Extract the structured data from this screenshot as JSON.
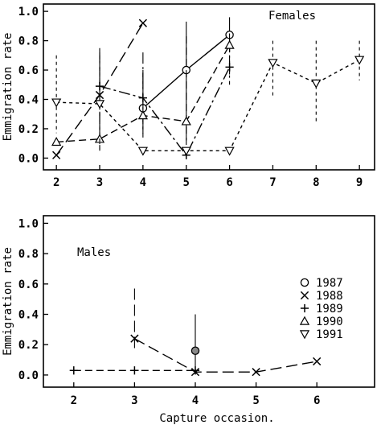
{
  "chart_data": [
    {
      "type": "line",
      "panel_label": "Females",
      "ylabel": "Emmigration rate",
      "xlabel": "",
      "xlim": [
        1.7,
        9.35
      ],
      "ylim": [
        -0.08,
        1.05
      ],
      "xticks": [
        2,
        3,
        4,
        5,
        6,
        7,
        8,
        9
      ],
      "yticks": [
        0.0,
        0.2,
        0.4,
        0.6,
        0.8,
        1.0
      ],
      "ytick_labels": [
        "0.0",
        "0.2",
        "0.4",
        "0.6",
        "0.8",
        "1.0"
      ],
      "series": [
        {
          "name": "1987",
          "marker": "circle",
          "dash": "solid",
          "points": [
            [
              4,
              0.34
            ],
            [
              5,
              0.6
            ],
            [
              6,
              0.84
            ]
          ],
          "error_bars": [
            [
              4,
              0.2,
              0.58
            ],
            [
              5,
              0.12,
              0.93
            ],
            [
              6,
              0.72,
              0.96
            ]
          ]
        },
        {
          "name": "1988",
          "marker": "x",
          "dash": "long",
          "points": [
            [
              2,
              0.02
            ],
            [
              3,
              0.43
            ],
            [
              4,
              0.92
            ]
          ],
          "error_bars": [
            [
              3,
              0.1,
              0.75
            ]
          ]
        },
        {
          "name": "1989",
          "marker": "plus",
          "dash": "dashdot",
          "points": [
            [
              3,
              0.49
            ],
            [
              4,
              0.41
            ],
            [
              5,
              0.02
            ],
            [
              6,
              0.62
            ]
          ],
          "error_bars": [
            [
              3,
              0.06,
              0.72
            ],
            [
              4,
              0.14,
              0.72
            ],
            [
              6,
              0.5,
              0.8
            ]
          ]
        },
        {
          "name": "1990",
          "marker": "triangle-up",
          "dash": "medium",
          "points": [
            [
              2,
              0.11
            ],
            [
              3,
              0.13
            ],
            [
              4,
              0.29
            ],
            [
              5,
              0.25
            ],
            [
              6,
              0.77
            ]
          ],
          "error_bars": [
            [
              3,
              0.05,
              0.7
            ],
            [
              4,
              0.14,
              0.6
            ],
            [
              5,
              0.05,
              0.83
            ],
            [
              6,
              0.55,
              0.85
            ]
          ]
        },
        {
          "name": "1991",
          "marker": "triangle-down",
          "dash": "short",
          "points": [
            [
              2,
              0.38
            ],
            [
              3,
              0.37
            ],
            [
              4,
              0.05
            ],
            [
              5,
              0.05
            ],
            [
              6,
              0.05
            ],
            [
              7,
              0.65
            ],
            [
              8,
              0.51
            ],
            [
              9,
              0.67
            ]
          ],
          "error_bars": [
            [
              2,
              0.17,
              0.7
            ],
            [
              3,
              0.08,
              0.66
            ],
            [
              7,
              0.42,
              0.8
            ],
            [
              8,
              0.24,
              0.8
            ],
            [
              9,
              0.53,
              0.8
            ]
          ]
        }
      ]
    },
    {
      "type": "line",
      "panel_label": "Males",
      "ylabel": "Emmigration rate",
      "xlabel": "Capture occasion.",
      "xlim": [
        1.5,
        6.95
      ],
      "ylim": [
        -0.08,
        1.05
      ],
      "xticks": [
        2,
        3,
        4,
        5,
        6
      ],
      "yticks": [
        0.0,
        0.2,
        0.4,
        0.6,
        0.8,
        1.0
      ],
      "ytick_labels": [
        "0.0",
        "0.2",
        "0.4",
        "0.6",
        "0.8",
        "1.0"
      ],
      "series": [
        {
          "name": "1987",
          "marker": "circle-filled",
          "dash": "none",
          "points": [
            [
              4,
              0.16
            ]
          ],
          "error_bars": [
            [
              4,
              0.01,
              0.4
            ]
          ]
        },
        {
          "name": "1988",
          "marker": "x",
          "dash": "long",
          "points": [
            [
              3,
              0.24
            ],
            [
              4,
              0.02
            ],
            [
              5,
              0.02
            ],
            [
              6,
              0.09
            ]
          ],
          "error_bars": [
            [
              3,
              0.15,
              0.57
            ]
          ]
        },
        {
          "name": "1989",
          "marker": "plus",
          "dash": "medium",
          "points": [
            [
              2,
              0.03
            ],
            [
              3,
              0.03
            ],
            [
              4,
              0.03
            ]
          ],
          "error_bars": []
        }
      ],
      "legend": {
        "position": "right",
        "entries": [
          {
            "label": "1987",
            "marker": "circle"
          },
          {
            "label": "1988",
            "marker": "x"
          },
          {
            "label": "1989",
            "marker": "plus"
          },
          {
            "label": "1990",
            "marker": "triangle-up"
          },
          {
            "label": "1991",
            "marker": "triangle-down"
          }
        ]
      }
    }
  ]
}
